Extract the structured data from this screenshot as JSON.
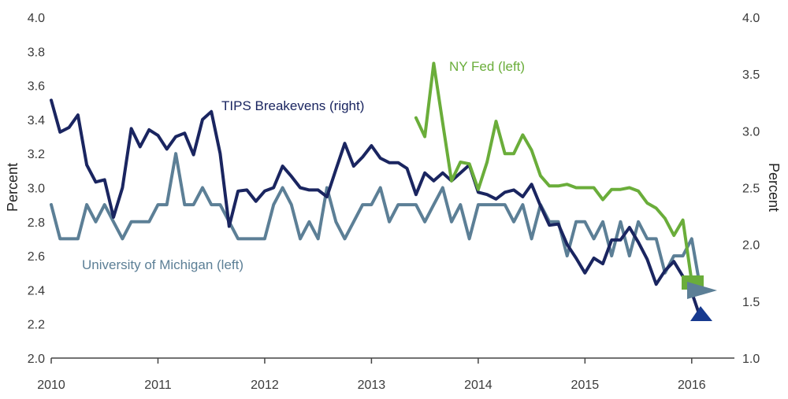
{
  "chart_data": {
    "type": "line",
    "title": "",
    "xlabel": "",
    "ylabel_left": "Percent",
    "ylabel_right": "Percent",
    "x_ticks": [
      "2010",
      "2011",
      "2012",
      "2013",
      "2014",
      "2015",
      "2016"
    ],
    "xlim": [
      2010,
      2016.4
    ],
    "ylim_left": [
      2.0,
      4.0
    ],
    "yticks_left": [
      "2.0",
      "2.2",
      "2.4",
      "2.6",
      "2.8",
      "3.0",
      "3.2",
      "3.4",
      "3.6",
      "3.8",
      "4.0"
    ],
    "ylim_right": [
      1.0,
      4.0
    ],
    "yticks_right": [
      "1.0",
      "1.5",
      "2.0",
      "2.5",
      "3.0",
      "3.5",
      "4.0"
    ],
    "grid": "none",
    "legend": "inline labels",
    "colors": {
      "tips": "#1a2560",
      "michigan": "#5c7f96",
      "nyfed": "#6aad3a",
      "triangle_marker": "#173a8f"
    },
    "series": [
      {
        "name": "TIPS Breakevens (right)",
        "axis": "right",
        "x": [
          2010.0,
          2010.083,
          2010.167,
          2010.25,
          2010.333,
          2010.417,
          2010.5,
          2010.583,
          2010.667,
          2010.75,
          2010.833,
          2010.917,
          2011.0,
          2011.083,
          2011.167,
          2011.25,
          2011.333,
          2011.417,
          2011.5,
          2011.583,
          2011.667,
          2011.75,
          2011.833,
          2011.917,
          2012.0,
          2012.083,
          2012.167,
          2012.25,
          2012.333,
          2012.417,
          2012.5,
          2012.583,
          2012.667,
          2012.75,
          2012.833,
          2012.917,
          2013.0,
          2013.083,
          2013.167,
          2013.25,
          2013.333,
          2013.417,
          2013.5,
          2013.583,
          2013.667,
          2013.75,
          2013.833,
          2013.917,
          2014.0,
          2014.083,
          2014.167,
          2014.25,
          2014.333,
          2014.417,
          2014.5,
          2014.583,
          2014.667,
          2014.75,
          2014.833,
          2014.917,
          2015.0,
          2015.083,
          2015.167,
          2015.25,
          2015.333,
          2015.417,
          2015.5,
          2015.583,
          2015.667,
          2015.75,
          2015.833,
          2015.917,
          2016.0,
          2016.083
        ],
        "values": [
          3.27,
          2.99,
          3.03,
          3.14,
          2.7,
          2.55,
          2.57,
          2.24,
          2.5,
          3.02,
          2.86,
          3.01,
          2.96,
          2.84,
          2.95,
          2.98,
          2.79,
          3.1,
          3.17,
          2.8,
          2.16,
          2.47,
          2.48,
          2.38,
          2.47,
          2.5,
          2.69,
          2.6,
          2.5,
          2.48,
          2.48,
          2.42,
          2.66,
          2.89,
          2.69,
          2.77,
          2.87,
          2.76,
          2.72,
          2.72,
          2.67,
          2.44,
          2.63,
          2.56,
          2.63,
          2.56,
          2.63,
          2.7,
          2.46,
          2.44,
          2.4,
          2.46,
          2.48,
          2.42,
          2.53,
          2.34,
          2.17,
          2.18,
          2.0,
          1.88,
          1.75,
          1.88,
          1.83,
          2.04,
          2.04,
          2.15,
          2.02,
          1.87,
          1.65,
          1.77,
          1.85,
          1.72,
          1.58,
          1.35
        ]
      },
      {
        "name": "University of Michigan (left)",
        "axis": "left",
        "x": [
          2010.0,
          2010.083,
          2010.167,
          2010.25,
          2010.333,
          2010.417,
          2010.5,
          2010.583,
          2010.667,
          2010.75,
          2010.833,
          2010.917,
          2011.0,
          2011.083,
          2011.167,
          2011.25,
          2011.333,
          2011.417,
          2011.5,
          2011.583,
          2011.667,
          2011.75,
          2011.833,
          2011.917,
          2012.0,
          2012.083,
          2012.167,
          2012.25,
          2012.333,
          2012.417,
          2012.5,
          2012.583,
          2012.667,
          2012.75,
          2012.833,
          2012.917,
          2013.0,
          2013.083,
          2013.167,
          2013.25,
          2013.333,
          2013.417,
          2013.5,
          2013.583,
          2013.667,
          2013.75,
          2013.833,
          2013.917,
          2014.0,
          2014.083,
          2014.167,
          2014.25,
          2014.333,
          2014.417,
          2014.5,
          2014.583,
          2014.667,
          2014.75,
          2014.833,
          2014.917,
          2015.0,
          2015.083,
          2015.167,
          2015.25,
          2015.333,
          2015.417,
          2015.5,
          2015.583,
          2015.667,
          2015.75,
          2015.833,
          2015.917,
          2016.0,
          2016.083
        ],
        "values": [
          2.9,
          2.7,
          2.7,
          2.7,
          2.9,
          2.8,
          2.9,
          2.8,
          2.7,
          2.8,
          2.8,
          2.8,
          2.9,
          2.9,
          3.2,
          2.9,
          2.9,
          3.0,
          2.9,
          2.9,
          2.8,
          2.7,
          2.7,
          2.7,
          2.7,
          2.9,
          3.0,
          2.9,
          2.7,
          2.8,
          2.7,
          3.0,
          2.8,
          2.7,
          2.8,
          2.9,
          2.9,
          3.0,
          2.8,
          2.9,
          2.9,
          2.9,
          2.8,
          2.9,
          3.0,
          2.8,
          2.9,
          2.7,
          2.9,
          2.9,
          2.9,
          2.9,
          2.8,
          2.9,
          2.7,
          2.9,
          2.8,
          2.8,
          2.6,
          2.8,
          2.8,
          2.7,
          2.8,
          2.6,
          2.8,
          2.6,
          2.8,
          2.7,
          2.7,
          2.5,
          2.6,
          2.6,
          2.7,
          2.4
        ]
      },
      {
        "name": "NY Fed (left)",
        "axis": "left",
        "x": [
          2013.417,
          2013.5,
          2013.583,
          2013.667,
          2013.75,
          2013.833,
          2013.917,
          2014.0,
          2014.083,
          2014.167,
          2014.25,
          2014.333,
          2014.417,
          2014.5,
          2014.583,
          2014.667,
          2014.75,
          2014.833,
          2014.917,
          2015.0,
          2015.083,
          2015.167,
          2015.25,
          2015.333,
          2015.417,
          2015.5,
          2015.583,
          2015.667,
          2015.75,
          2015.833,
          2015.917,
          2016.0
        ],
        "values": [
          3.41,
          3.3,
          3.73,
          3.38,
          3.04,
          3.15,
          3.14,
          2.99,
          3.15,
          3.39,
          3.2,
          3.2,
          3.31,
          3.22,
          3.07,
          3.01,
          3.01,
          3.02,
          3.0,
          3.0,
          3.0,
          2.93,
          2.99,
          2.99,
          3.0,
          2.98,
          2.91,
          2.88,
          2.82,
          2.72,
          2.81,
          2.45
        ]
      }
    ]
  }
}
